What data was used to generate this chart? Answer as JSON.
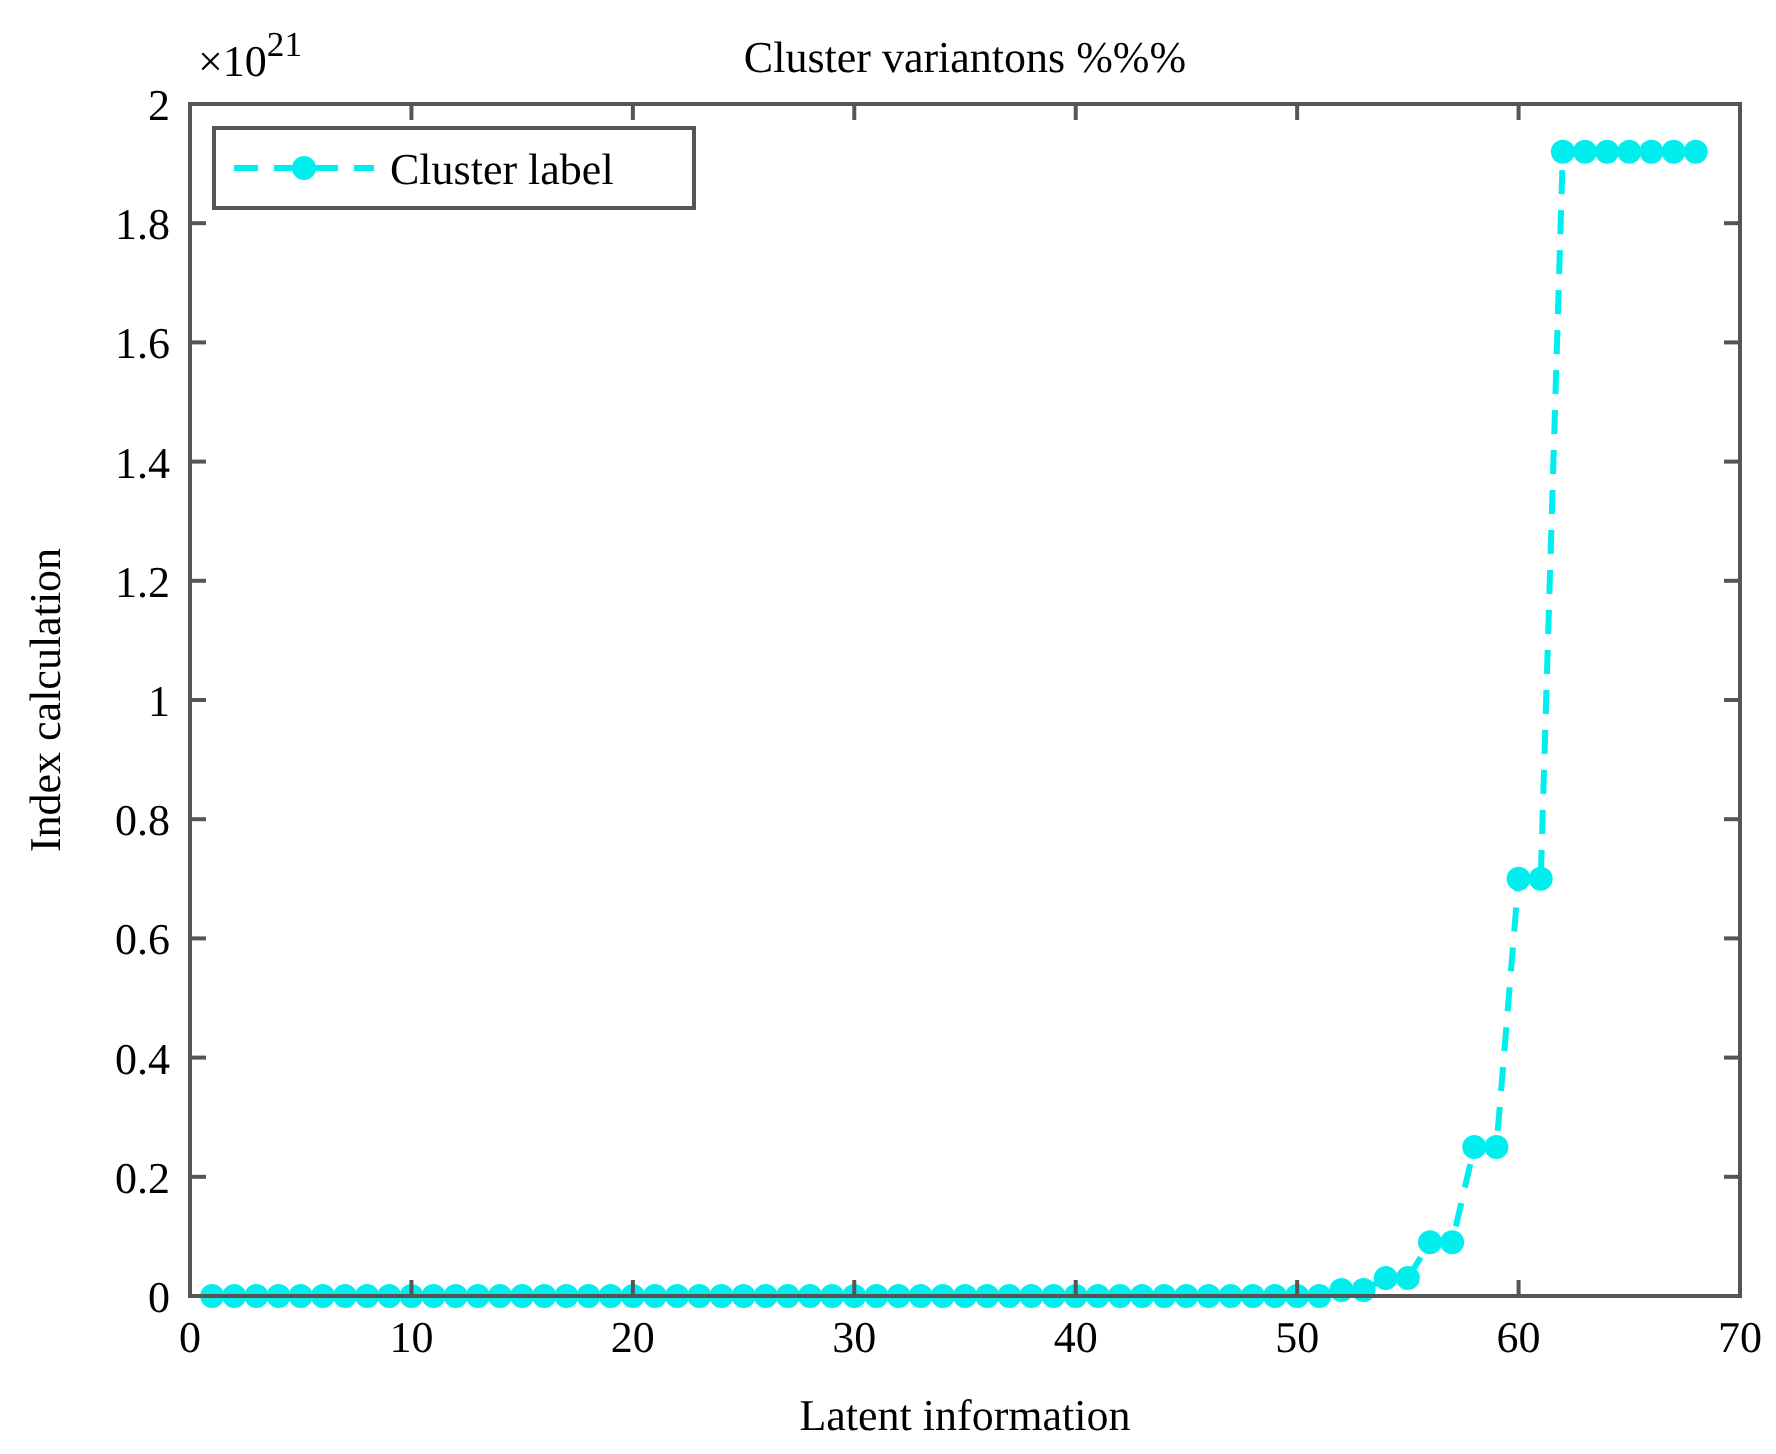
{
  "chart_data": {
    "type": "line",
    "title": "Cluster variantons %%%",
    "xlabel": "Latent information",
    "ylabel": "Index calculation",
    "annotations": [
      "×10$^{21}$"
    ],
    "x": [
      1,
      2,
      3,
      4,
      5,
      6,
      7,
      8,
      9,
      10,
      11,
      12,
      13,
      14,
      15,
      16,
      17,
      18,
      19,
      20,
      21,
      22,
      23,
      24,
      25,
      26,
      27,
      28,
      29,
      30,
      31,
      32,
      33,
      34,
      35,
      36,
      37,
      38,
      39,
      40,
      41,
      42,
      43,
      44,
      45,
      46,
      47,
      48,
      49,
      50,
      51,
      52,
      53,
      54,
      55,
      56,
      57,
      58,
      59,
      60,
      61,
      62,
      63,
      64,
      65,
      66,
      67,
      68
    ],
    "series": [
      {
        "name": "Cluster label",
        "color": "#00eeee",
        "values": [
          0,
          0,
          0,
          0,
          0,
          0,
          0,
          0,
          0,
          0,
          0,
          0,
          0,
          0,
          0,
          0,
          0,
          0,
          0,
          0,
          0,
          0,
          0,
          0,
          0,
          0,
          0,
          0,
          0,
          0,
          0,
          0,
          0,
          0,
          0,
          0,
          0,
          0,
          0,
          0,
          0,
          0,
          0,
          0,
          0,
          0,
          0,
          0,
          0,
          0,
          0,
          0.01,
          0.01,
          0.03,
          0.03,
          0.09,
          0.09,
          0.25,
          0.25,
          0.7,
          0.7,
          1.92,
          1.92,
          1.92,
          1.92,
          1.92,
          1.92,
          1.92
        ]
      }
    ],
    "xlim": [
      0,
      70
    ],
    "xticks": [
      0,
      10,
      20,
      30,
      40,
      50,
      60,
      70
    ],
    "ylim": [
      0,
      2
    ],
    "yticks": [
      0,
      0.2,
      0.4,
      0.6,
      0.8,
      1,
      1.2,
      1.4,
      1.6,
      1.8,
      2
    ],
    "grid": false,
    "legend": "top left",
    "marker": "circle",
    "line_style": "dashed"
  }
}
